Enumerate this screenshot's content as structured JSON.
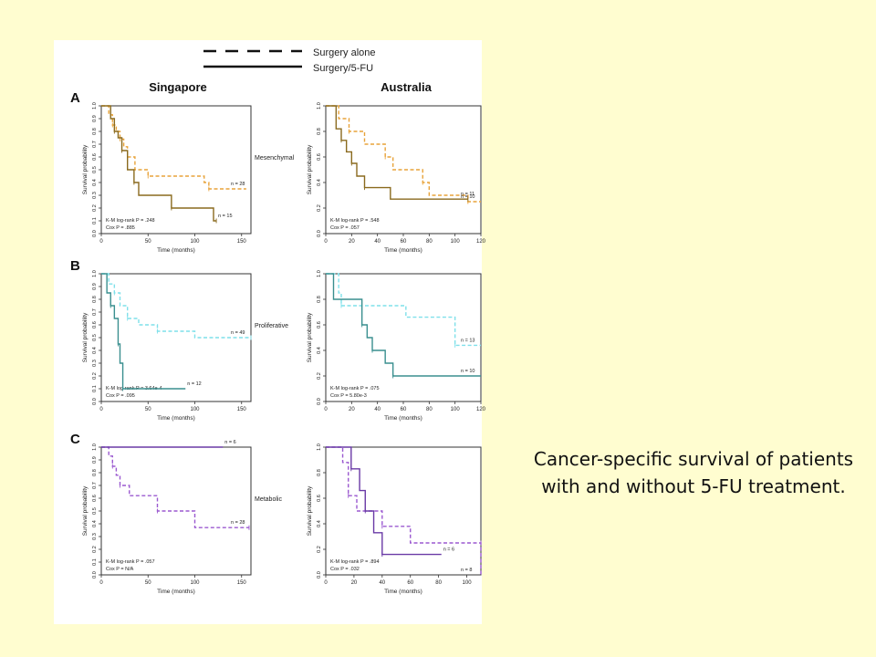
{
  "legend": {
    "dashed_label": "Surgery alone",
    "solid_label": "Surgery/5-FU"
  },
  "columns": {
    "left": "Singapore",
    "right": "Australia"
  },
  "caption": {
    "line1": "Cancer-specific survival of patients",
    "line2": "with and without 5-FU treatment."
  },
  "colors": {
    "background": "#FFFDD0",
    "mesenchymal": "#E8A33A",
    "mesenchymal_dark": "#8A6A1E",
    "proliferative": "#7FE0EA",
    "proliferative_dark": "#3A8F8F",
    "metabolic": "#9B59D0",
    "metabolic_dark": "#6A3AA6"
  },
  "chart_data": [
    {
      "id": "A-Singapore",
      "type": "line",
      "panel_letter": "A",
      "subtype": "Mesenchymal",
      "xlabel": "Time (months)",
      "ylabel": "Survival probability",
      "xlim": [
        0,
        160
      ],
      "ylim": [
        0,
        1
      ],
      "xticks": [
        "0",
        "50",
        "100",
        "150"
      ],
      "yticks": [
        "0.0",
        "0.1",
        "0.2",
        "0.3",
        "0.4",
        "0.5",
        "0.6",
        "0.7",
        "0.8",
        "0.9",
        "1.0"
      ],
      "stats": [
        "K-M log-rank P = .248",
        "Cox P = .885"
      ],
      "series": [
        {
          "name": "Surgery alone",
          "style": "dashed",
          "color": "#E8A33A",
          "steps": [
            [
              0,
              1.0
            ],
            [
              8,
              0.93
            ],
            [
              12,
              0.85
            ],
            [
              16,
              0.8
            ],
            [
              20,
              0.74
            ],
            [
              24,
              0.68
            ],
            [
              28,
              0.6
            ],
            [
              36,
              0.5
            ],
            [
              50,
              0.45
            ],
            [
              110,
              0.4
            ],
            [
              115,
              0.35
            ],
            [
              155,
              0.35
            ]
          ],
          "label": "n = 28"
        },
        {
          "name": "Surgery/5-FU",
          "style": "solid",
          "color": "#8A6A1E",
          "steps": [
            [
              0,
              1.0
            ],
            [
              10,
              0.9
            ],
            [
              14,
              0.8
            ],
            [
              18,
              0.75
            ],
            [
              22,
              0.65
            ],
            [
              28,
              0.5
            ],
            [
              35,
              0.4
            ],
            [
              40,
              0.3
            ],
            [
              75,
              0.2
            ],
            [
              120,
              0.1
            ],
            [
              123,
              0.1
            ]
          ],
          "label": "n = 15"
        }
      ]
    },
    {
      "id": "A-Australia",
      "type": "line",
      "panel_letter": "",
      "subtype": "",
      "xlabel": "Time (months)",
      "ylabel": "Survival probability",
      "xlim": [
        0,
        120
      ],
      "ylim": [
        0,
        1
      ],
      "xticks": [
        "0",
        "20",
        "40",
        "60",
        "80",
        "100",
        "120"
      ],
      "yticks": [
        "0.0",
        "0.2",
        "0.4",
        "0.6",
        "0.8",
        "1.0"
      ],
      "stats": [
        "K-M log-rank P = .548",
        "Cox P = .057"
      ],
      "series": [
        {
          "name": "Surgery alone",
          "style": "dashed",
          "color": "#E8A33A",
          "steps": [
            [
              0,
              1.0
            ],
            [
              10,
              0.9
            ],
            [
              18,
              0.8
            ],
            [
              30,
              0.7
            ],
            [
              46,
              0.6
            ],
            [
              52,
              0.5
            ],
            [
              75,
              0.4
            ],
            [
              80,
              0.3
            ],
            [
              110,
              0.25
            ],
            [
              120,
              0.25
            ]
          ],
          "label": "n = 10"
        },
        {
          "name": "Surgery/5-FU",
          "style": "solid",
          "color": "#8A6A1E",
          "steps": [
            [
              0,
              1.0
            ],
            [
              8,
              0.82
            ],
            [
              12,
              0.73
            ],
            [
              16,
              0.64
            ],
            [
              20,
              0.55
            ],
            [
              24,
              0.45
            ],
            [
              30,
              0.36
            ],
            [
              50,
              0.27
            ],
            [
              110,
              0.27
            ]
          ],
          "label": "n = 11"
        }
      ]
    },
    {
      "id": "B-Singapore",
      "type": "line",
      "panel_letter": "B",
      "subtype": "Proliferative",
      "xlabel": "Time (months)",
      "ylabel": "Survival probability",
      "xlim": [
        0,
        160
      ],
      "ylim": [
        0,
        1
      ],
      "xticks": [
        "0",
        "50",
        "100",
        "150"
      ],
      "yticks": [
        "0.0",
        "0.1",
        "0.2",
        "0.3",
        "0.4",
        "0.5",
        "0.6",
        "0.7",
        "0.8",
        "0.9",
        "1.0"
      ],
      "stats": [
        "K-M log-rank P = 3.64e-4",
        "Cox P = .095"
      ],
      "series": [
        {
          "name": "Surgery alone",
          "style": "dashed",
          "color": "#7FE0EA",
          "steps": [
            [
              0,
              1.0
            ],
            [
              8,
              0.92
            ],
            [
              14,
              0.85
            ],
            [
              20,
              0.75
            ],
            [
              28,
              0.65
            ],
            [
              40,
              0.6
            ],
            [
              60,
              0.55
            ],
            [
              100,
              0.5
            ],
            [
              160,
              0.5
            ]
          ],
          "label": "n = 49"
        },
        {
          "name": "Surgery/5-FU",
          "style": "solid",
          "color": "#3A8F8F",
          "steps": [
            [
              0,
              1.0
            ],
            [
              6,
              0.85
            ],
            [
              10,
              0.75
            ],
            [
              14,
              0.65
            ],
            [
              18,
              0.45
            ],
            [
              20,
              0.3
            ],
            [
              23,
              0.1
            ],
            [
              90,
              0.1
            ]
          ],
          "label": "n = 12"
        }
      ]
    },
    {
      "id": "B-Australia",
      "type": "line",
      "panel_letter": "",
      "subtype": "",
      "xlabel": "Time (months)",
      "ylabel": "Survival probability",
      "xlim": [
        0,
        120
      ],
      "ylim": [
        0,
        1
      ],
      "xticks": [
        "0",
        "20",
        "40",
        "60",
        "80",
        "100",
        "120"
      ],
      "yticks": [
        "0.0",
        "0.2",
        "0.4",
        "0.6",
        "0.8",
        "1.0"
      ],
      "stats": [
        "K-M log-rank P = .075",
        "Cox P = 5.80e-3"
      ],
      "series": [
        {
          "name": "Surgery alone",
          "style": "dashed",
          "color": "#7FE0EA",
          "steps": [
            [
              0,
              1.0
            ],
            [
              10,
              0.85
            ],
            [
              12,
              0.75
            ],
            [
              62,
              0.66
            ],
            [
              100,
              0.44
            ],
            [
              120,
              0.44
            ]
          ],
          "label": "n = 13"
        },
        {
          "name": "Surgery/5-FU",
          "style": "solid",
          "color": "#3A8F8F",
          "steps": [
            [
              0,
              1.0
            ],
            [
              6,
              0.8
            ],
            [
              28,
              0.6
            ],
            [
              32,
              0.5
            ],
            [
              36,
              0.4
            ],
            [
              46,
              0.3
            ],
            [
              52,
              0.2
            ],
            [
              120,
              0.2
            ]
          ],
          "label": "n = 10"
        }
      ]
    },
    {
      "id": "C-Singapore",
      "type": "line",
      "panel_letter": "C",
      "subtype": "Metabolic",
      "xlabel": "Time (months)",
      "ylabel": "Survival probability",
      "xlim": [
        0,
        160
      ],
      "ylim": [
        0,
        1
      ],
      "xticks": [
        "0",
        "50",
        "100",
        "150"
      ],
      "yticks": [
        "0.0",
        "0.1",
        "0.2",
        "0.3",
        "0.4",
        "0.5",
        "0.6",
        "0.7",
        "0.8",
        "0.9",
        "1.0"
      ],
      "stats": [
        "K-M log-rank P = .057",
        "Cox P = N/A"
      ],
      "series": [
        {
          "name": "Surgery alone",
          "style": "dashed",
          "color": "#9B59D0",
          "steps": [
            [
              0,
              1.0
            ],
            [
              8,
              0.93
            ],
            [
              12,
              0.85
            ],
            [
              16,
              0.78
            ],
            [
              20,
              0.7
            ],
            [
              30,
              0.62
            ],
            [
              60,
              0.5
            ],
            [
              100,
              0.37
            ],
            [
              158,
              0.37
            ]
          ],
          "label": "n = 28"
        },
        {
          "name": "Surgery/5-FU",
          "style": "solid",
          "color": "#6A3AA6",
          "steps": [
            [
              0,
              1.0
            ],
            [
              130,
              1.0
            ]
          ],
          "label": "n = 6"
        }
      ]
    },
    {
      "id": "C-Australia",
      "type": "line",
      "panel_letter": "",
      "subtype": "",
      "xlabel": "Time (months)",
      "ylabel": "Survival probability",
      "xlim": [
        0,
        110
      ],
      "ylim": [
        0,
        1
      ],
      "xticks": [
        "0",
        "20",
        "40",
        "60",
        "80",
        "100"
      ],
      "yticks": [
        "0.0",
        "0.2",
        "0.4",
        "0.6",
        "0.8",
        "1.0"
      ],
      "stats": [
        "K-M log-rank P = .894",
        "Cox P = .032"
      ],
      "series": [
        {
          "name": "Surgery alone",
          "style": "dashed",
          "color": "#9B59D0",
          "steps": [
            [
              0,
              1.0
            ],
            [
              12,
              0.88
            ],
            [
              16,
              0.62
            ],
            [
              22,
              0.5
            ],
            [
              40,
              0.38
            ],
            [
              60,
              0.25
            ],
            [
              110,
              0.25
            ],
            [
              110,
              0.0
            ]
          ],
          "label": "n = 8"
        },
        {
          "name": "Surgery/5-FU",
          "style": "solid",
          "color": "#6A3AA6",
          "steps": [
            [
              0,
              1.0
            ],
            [
              16,
              1.0
            ],
            [
              18,
              0.83
            ],
            [
              24,
              0.66
            ],
            [
              28,
              0.5
            ],
            [
              34,
              0.33
            ],
            [
              40,
              0.16
            ],
            [
              82,
              0.16
            ]
          ],
          "label": "n = 6"
        }
      ]
    }
  ]
}
